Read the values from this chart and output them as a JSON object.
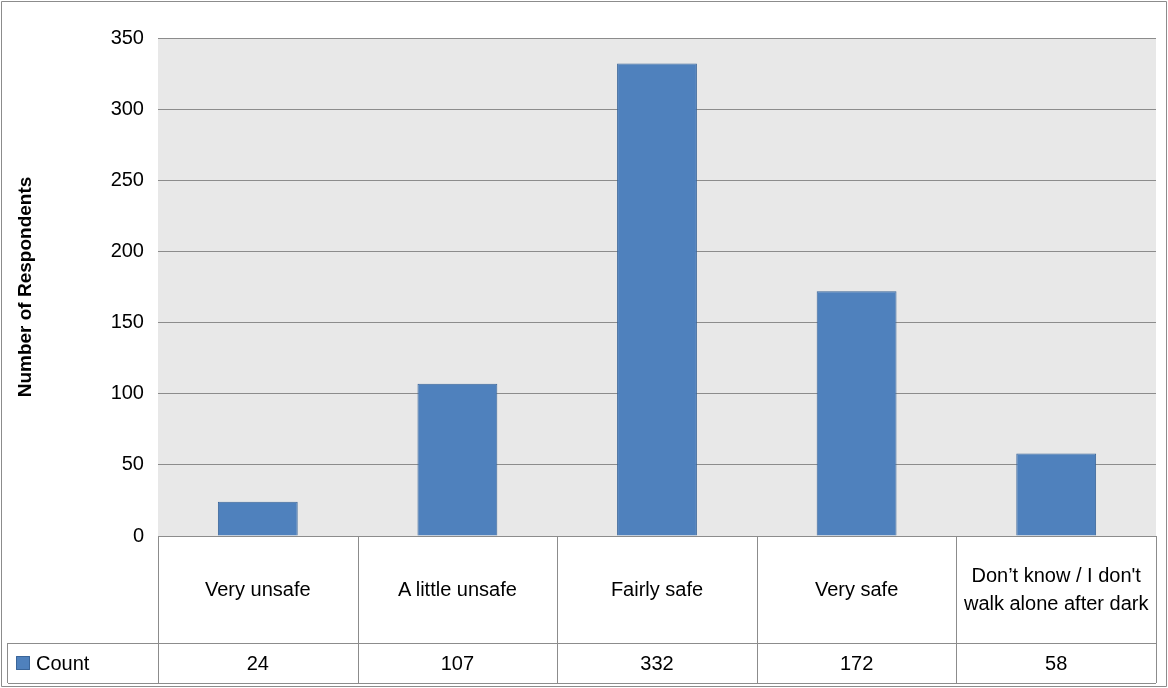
{
  "chart_data": {
    "type": "bar",
    "ylabel": "Number of Respondents",
    "categories": [
      "Very unsafe",
      "A little unsafe",
      "Fairly safe",
      "Very safe",
      "Don’t know / I don't walk alone after dark"
    ],
    "series": [
      {
        "name": "Count",
        "color": "#4f81bd",
        "values": [
          24,
          107,
          332,
          172,
          58
        ]
      }
    ],
    "ylim": [
      0,
      350
    ],
    "yticks": [
      0,
      50,
      100,
      150,
      200,
      250,
      300,
      350
    ],
    "grid": "y",
    "legend": "bottom",
    "data_labels": true
  }
}
